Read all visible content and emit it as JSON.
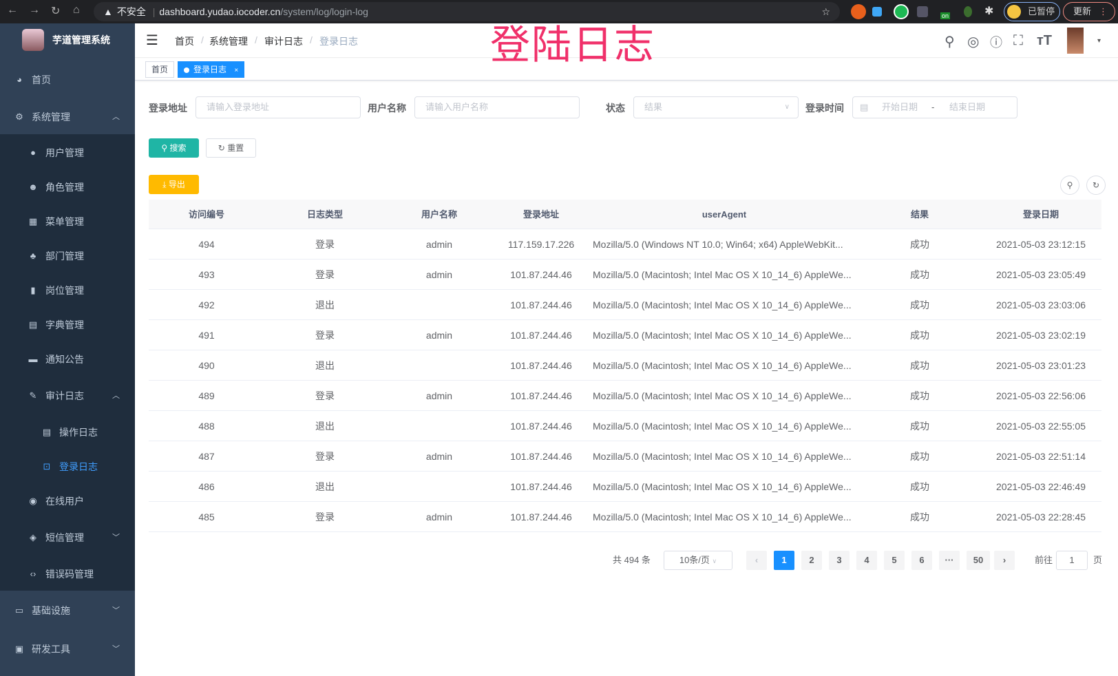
{
  "browser": {
    "url_warning": "不安全",
    "url_host": "dashboard.yudao.iocoder.cn",
    "url_path": "/system/log/login-log",
    "paused_label": "已暂停",
    "update_label": "更新",
    "ext_on_badge": "on"
  },
  "sidebar": {
    "brand": "芋道管理系统",
    "items": [
      {
        "label": "首页",
        "icon": "dashboard-icon"
      },
      {
        "label": "系统管理",
        "icon": "gear-icon",
        "expanded": true
      },
      {
        "label": "用户管理",
        "icon": "user-icon"
      },
      {
        "label": "角色管理",
        "icon": "peoples-icon"
      },
      {
        "label": "菜单管理",
        "icon": "tree-table-icon"
      },
      {
        "label": "部门管理",
        "icon": "tree-icon"
      },
      {
        "label": "岗位管理",
        "icon": "post-icon"
      },
      {
        "label": "字典管理",
        "icon": "dict-icon"
      },
      {
        "label": "通知公告",
        "icon": "message-icon"
      },
      {
        "label": "审计日志",
        "icon": "log-icon",
        "expanded": true
      },
      {
        "label": "操作日志",
        "icon": "form-icon"
      },
      {
        "label": "登录日志",
        "icon": "logininfor-icon",
        "active": true
      },
      {
        "label": "在线用户",
        "icon": "online-icon"
      },
      {
        "label": "短信管理",
        "icon": "validCode-icon",
        "expanded": false
      },
      {
        "label": "错误码管理",
        "icon": "code-icon"
      },
      {
        "label": "基础设施",
        "icon": "monitor-icon",
        "expanded": false
      },
      {
        "label": "研发工具",
        "icon": "tool-icon",
        "expanded": false
      }
    ]
  },
  "navbar": {
    "breadcrumb": [
      "首页",
      "系统管理",
      "审计日志",
      "登录日志"
    ],
    "overlay_title": "登陆日志"
  },
  "tags": {
    "items": [
      "首页",
      "登录日志"
    ]
  },
  "filters": {
    "address_label": "登录地址",
    "address_placeholder": "请输入登录地址",
    "username_label": "用户名称",
    "username_placeholder": "请输入用户名称",
    "status_label": "状态",
    "status_placeholder": "结果",
    "time_label": "登录时间",
    "start_placeholder": "开始日期",
    "range_sep": "-",
    "end_placeholder": "结束日期",
    "search_label": "搜索",
    "reset_label": "重置",
    "export_label": "导出"
  },
  "table": {
    "headers": [
      "访问编号",
      "日志类型",
      "用户名称",
      "登录地址",
      "userAgent",
      "结果",
      "登录日期"
    ],
    "rows": [
      [
        "494",
        "登录",
        "admin",
        "117.159.17.226",
        "Mozilla/5.0 (Windows NT 10.0; Win64; x64) AppleWebKit...",
        "成功",
        "2021-05-03 23:12:15"
      ],
      [
        "493",
        "登录",
        "admin",
        "101.87.244.46",
        "Mozilla/5.0 (Macintosh; Intel Mac OS X 10_14_6) AppleWe...",
        "成功",
        "2021-05-03 23:05:49"
      ],
      [
        "492",
        "退出",
        "",
        "101.87.244.46",
        "Mozilla/5.0 (Macintosh; Intel Mac OS X 10_14_6) AppleWe...",
        "成功",
        "2021-05-03 23:03:06"
      ],
      [
        "491",
        "登录",
        "admin",
        "101.87.244.46",
        "Mozilla/5.0 (Macintosh; Intel Mac OS X 10_14_6) AppleWe...",
        "成功",
        "2021-05-03 23:02:19"
      ],
      [
        "490",
        "退出",
        "",
        "101.87.244.46",
        "Mozilla/5.0 (Macintosh; Intel Mac OS X 10_14_6) AppleWe...",
        "成功",
        "2021-05-03 23:01:23"
      ],
      [
        "489",
        "登录",
        "admin",
        "101.87.244.46",
        "Mozilla/5.0 (Macintosh; Intel Mac OS X 10_14_6) AppleWe...",
        "成功",
        "2021-05-03 22:56:06"
      ],
      [
        "488",
        "退出",
        "",
        "101.87.244.46",
        "Mozilla/5.0 (Macintosh; Intel Mac OS X 10_14_6) AppleWe...",
        "成功",
        "2021-05-03 22:55:05"
      ],
      [
        "487",
        "登录",
        "admin",
        "101.87.244.46",
        "Mozilla/5.0 (Macintosh; Intel Mac OS X 10_14_6) AppleWe...",
        "成功",
        "2021-05-03 22:51:14"
      ],
      [
        "486",
        "退出",
        "",
        "101.87.244.46",
        "Mozilla/5.0 (Macintosh; Intel Mac OS X 10_14_6) AppleWe...",
        "成功",
        "2021-05-03 22:46:49"
      ],
      [
        "485",
        "登录",
        "admin",
        "101.87.244.46",
        "Mozilla/5.0 (Macintosh; Intel Mac OS X 10_14_6) AppleWe...",
        "成功",
        "2021-05-03 22:28:45"
      ]
    ]
  },
  "pagination": {
    "total": "共 494 条",
    "page_size": "10条/页",
    "pages": [
      "1",
      "2",
      "3",
      "4",
      "5",
      "6",
      "···",
      "50"
    ],
    "current": "1",
    "goto_prefix": "前往",
    "goto_value": "1",
    "goto_suffix": "页",
    "prev": "‹",
    "next": "›"
  },
  "colors": {
    "sidebar": "#304156",
    "submenu": "#1f2d3d",
    "primary": "#1890ff",
    "search": "#13ce66",
    "export": "#ffba00",
    "overlay": "#f0306a"
  }
}
